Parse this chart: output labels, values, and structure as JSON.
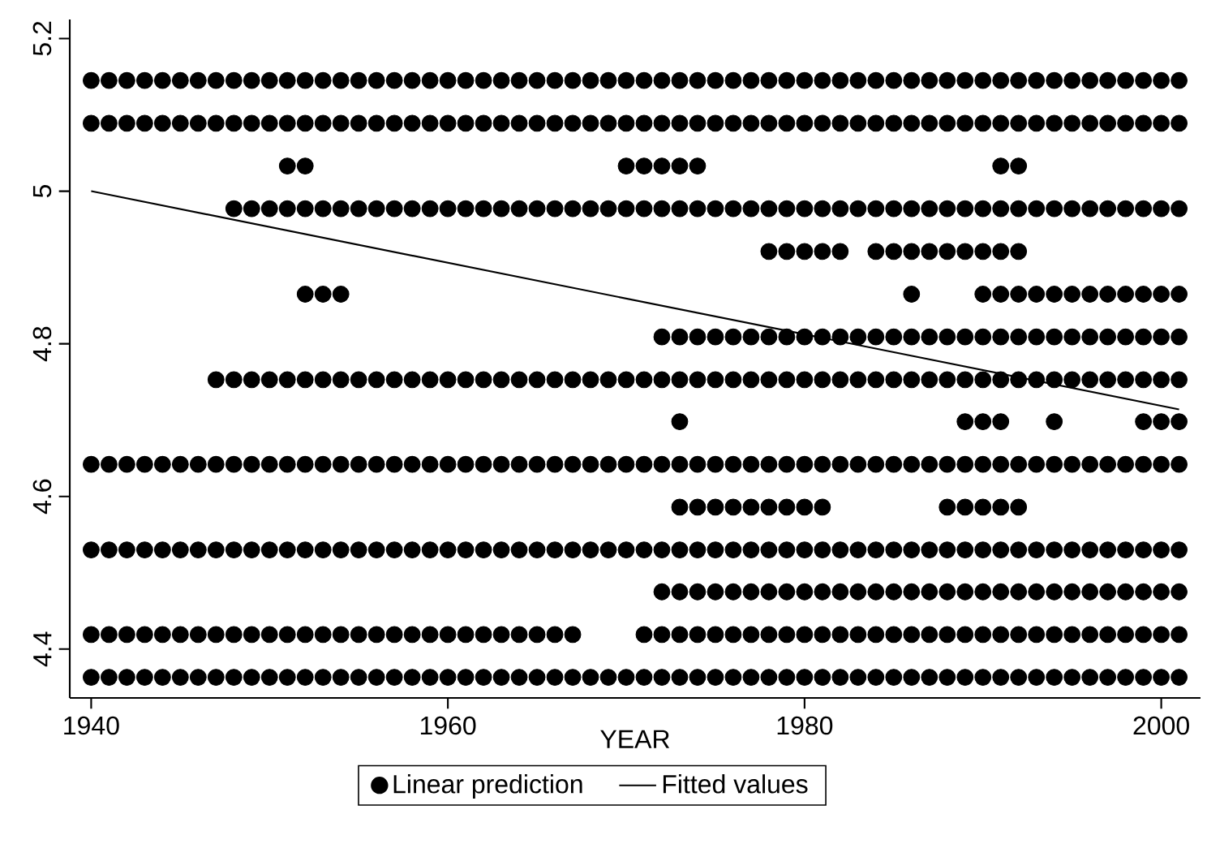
{
  "chart_data": {
    "type": "scatter",
    "xlabel": "YEAR",
    "xlim": [
      1938.8,
      2002.2
    ],
    "ylim": [
      4.336,
      5.225
    ],
    "xticks": [
      1940,
      1960,
      1980,
      2000
    ],
    "yticks": [
      4.4,
      4.6,
      4.8,
      5,
      5.2
    ],
    "legend": "bottom",
    "series": [
      {
        "name": "Linear prediction",
        "marker": "circle",
        "color": "#000000",
        "x": [
          1940,
          1941,
          1942,
          1943,
          1944,
          1945,
          1946,
          1947,
          1948,
          1949,
          1950,
          1951,
          1952,
          1953,
          1954,
          1955,
          1956,
          1957,
          1958,
          1959,
          1960,
          1961,
          1962,
          1963,
          1964,
          1965,
          1966,
          1967,
          1968,
          1969,
          1970,
          1971,
          1972,
          1973,
          1974,
          1975,
          1976,
          1977,
          1978,
          1979,
          1980,
          1981,
          1982,
          1983,
          1984,
          1985,
          1986,
          1987,
          1988,
          1989,
          1990,
          1991,
          1992,
          1993,
          1994,
          1995,
          1996,
          1997,
          1998,
          1999,
          2000,
          2001,
          1940,
          1941,
          1942,
          1943,
          1944,
          1945,
          1946,
          1947,
          1948,
          1949,
          1950,
          1951,
          1952,
          1953,
          1954,
          1955,
          1956,
          1957,
          1958,
          1959,
          1960,
          1961,
          1962,
          1963,
          1964,
          1965,
          1966,
          1967,
          1968,
          1969,
          1970,
          1971,
          1972,
          1973,
          1974,
          1975,
          1976,
          1977,
          1978,
          1979,
          1980,
          1981,
          1982,
          1983,
          1984,
          1985,
          1986,
          1987,
          1988,
          1989,
          1990,
          1991,
          1992,
          1993,
          1994,
          1995,
          1996,
          1997,
          1998,
          1999,
          2000,
          2001,
          1951,
          1952,
          1970,
          1971,
          1972,
          1973,
          1974,
          1991,
          1992,
          1948,
          1949,
          1950,
          1951,
          1952,
          1953,
          1954,
          1955,
          1956,
          1957,
          1958,
          1959,
          1960,
          1961,
          1962,
          1963,
          1964,
          1965,
          1966,
          1967,
          1968,
          1969,
          1970,
          1971,
          1972,
          1973,
          1974,
          1975,
          1976,
          1977,
          1978,
          1979,
          1980,
          1981,
          1982,
          1983,
          1984,
          1985,
          1986,
          1987,
          1988,
          1989,
          1990,
          1991,
          1992,
          1993,
          1994,
          1995,
          1996,
          1997,
          1998,
          1999,
          2000,
          2001,
          1978,
          1979,
          1980,
          1981,
          1982,
          1984,
          1985,
          1986,
          1987,
          1988,
          1989,
          1990,
          1991,
          1992,
          1952,
          1953,
          1954,
          1986,
          1990,
          1991,
          1992,
          1993,
          1994,
          1995,
          1996,
          1997,
          1998,
          1999,
          2000,
          2001,
          1972,
          1973,
          1974,
          1975,
          1976,
          1977,
          1978,
          1979,
          1980,
          1981,
          1982,
          1983,
          1984,
          1985,
          1986,
          1987,
          1988,
          1989,
          1990,
          1991,
          1992,
          1993,
          1994,
          1995,
          1996,
          1997,
          1998,
          1999,
          2000,
          2001,
          1947,
          1948,
          1949,
          1950,
          1951,
          1952,
          1953,
          1954,
          1955,
          1956,
          1957,
          1958,
          1959,
          1960,
          1961,
          1962,
          1963,
          1964,
          1965,
          1966,
          1967,
          1968,
          1969,
          1970,
          1971,
          1972,
          1973,
          1974,
          1975,
          1976,
          1977,
          1978,
          1979,
          1980,
          1981,
          1982,
          1983,
          1984,
          1985,
          1986,
          1987,
          1988,
          1989,
          1990,
          1991,
          1992,
          1993,
          1994,
          1995,
          1996,
          1997,
          1998,
          1999,
          2000,
          2001,
          1973,
          1989,
          1990,
          1991,
          1994,
          1999,
          2000,
          2001,
          1940,
          1941,
          1942,
          1943,
          1944,
          1945,
          1946,
          1947,
          1948,
          1949,
          1950,
          1951,
          1952,
          1953,
          1954,
          1955,
          1956,
          1957,
          1958,
          1959,
          1960,
          1961,
          1962,
          1963,
          1964,
          1965,
          1966,
          1967,
          1968,
          1969,
          1970,
          1971,
          1972,
          1973,
          1974,
          1975,
          1976,
          1977,
          1978,
          1979,
          1980,
          1981,
          1982,
          1983,
          1984,
          1985,
          1986,
          1987,
          1988,
          1989,
          1990,
          1991,
          1992,
          1993,
          1994,
          1995,
          1996,
          1997,
          1998,
          1999,
          2000,
          2001,
          1973,
          1974,
          1975,
          1976,
          1977,
          1978,
          1979,
          1980,
          1981,
          1988,
          1989,
          1990,
          1991,
          1992,
          1940,
          1941,
          1942,
          1943,
          1944,
          1945,
          1946,
          1947,
          1948,
          1949,
          1950,
          1951,
          1952,
          1953,
          1954,
          1955,
          1956,
          1957,
          1958,
          1959,
          1960,
          1961,
          1962,
          1963,
          1964,
          1965,
          1966,
          1967,
          1968,
          1969,
          1970,
          1971,
          1972,
          1973,
          1974,
          1975,
          1976,
          1977,
          1978,
          1979,
          1980,
          1981,
          1982,
          1983,
          1984,
          1985,
          1986,
          1987,
          1988,
          1989,
          1990,
          1991,
          1992,
          1993,
          1994,
          1995,
          1996,
          1997,
          1998,
          1999,
          2000,
          2001,
          1972,
          1973,
          1974,
          1975,
          1976,
          1977,
          1978,
          1979,
          1980,
          1981,
          1982,
          1983,
          1984,
          1985,
          1986,
          1987,
          1988,
          1989,
          1990,
          1991,
          1992,
          1993,
          1994,
          1995,
          1996,
          1997,
          1998,
          1999,
          2000,
          2001,
          1940,
          1941,
          1942,
          1943,
          1944,
          1945,
          1946,
          1947,
          1948,
          1949,
          1950,
          1951,
          1952,
          1953,
          1954,
          1955,
          1956,
          1957,
          1958,
          1959,
          1960,
          1961,
          1962,
          1963,
          1964,
          1965,
          1966,
          1967,
          1971,
          1972,
          1973,
          1974,
          1975,
          1976,
          1977,
          1978,
          1979,
          1980,
          1981,
          1982,
          1983,
          1984,
          1985,
          1986,
          1987,
          1988,
          1989,
          1990,
          1991,
          1992,
          1993,
          1994,
          1995,
          1996,
          1997,
          1998,
          1999,
          2000,
          2001,
          1940,
          1941,
          1942,
          1943,
          1944,
          1945,
          1946,
          1947,
          1948,
          1949,
          1950,
          1951,
          1952,
          1953,
          1954,
          1955,
          1956,
          1957,
          1958,
          1959,
          1960,
          1961,
          1962,
          1963,
          1964,
          1965,
          1966,
          1967,
          1968,
          1969,
          1970,
          1971,
          1972,
          1973,
          1974,
          1975,
          1976,
          1977,
          1978,
          1979,
          1980,
          1981,
          1982,
          1983,
          1984,
          1985,
          1986,
          1987,
          1988,
          1989,
          1990,
          1991,
          1992,
          1993,
          1994,
          1995,
          1996,
          1997,
          1998,
          1999,
          2000,
          2001
        ],
        "values": [
          5.145,
          5.145,
          5.145,
          5.145,
          5.145,
          5.145,
          5.145,
          5.145,
          5.145,
          5.145,
          5.145,
          5.145,
          5.145,
          5.145,
          5.145,
          5.145,
          5.145,
          5.145,
          5.145,
          5.145,
          5.145,
          5.145,
          5.145,
          5.145,
          5.145,
          5.145,
          5.145,
          5.145,
          5.145,
          5.145,
          5.145,
          5.145,
          5.145,
          5.145,
          5.145,
          5.145,
          5.145,
          5.145,
          5.145,
          5.145,
          5.145,
          5.145,
          5.145,
          5.145,
          5.145,
          5.145,
          5.145,
          5.145,
          5.145,
          5.145,
          5.145,
          5.145,
          5.145,
          5.145,
          5.145,
          5.145,
          5.145,
          5.145,
          5.145,
          5.145,
          5.145,
          5.145,
          5.089,
          5.089,
          5.089,
          5.089,
          5.089,
          5.089,
          5.089,
          5.089,
          5.089,
          5.089,
          5.089,
          5.089,
          5.089,
          5.089,
          5.089,
          5.089,
          5.089,
          5.089,
          5.089,
          5.089,
          5.089,
          5.089,
          5.089,
          5.089,
          5.089,
          5.089,
          5.089,
          5.089,
          5.089,
          5.089,
          5.089,
          5.089,
          5.089,
          5.089,
          5.089,
          5.089,
          5.089,
          5.089,
          5.089,
          5.089,
          5.089,
          5.089,
          5.089,
          5.089,
          5.089,
          5.089,
          5.089,
          5.089,
          5.089,
          5.089,
          5.089,
          5.089,
          5.089,
          5.089,
          5.089,
          5.089,
          5.089,
          5.089,
          5.089,
          5.089,
          5.089,
          5.089,
          5.033,
          5.033,
          5.033,
          5.033,
          5.033,
          5.033,
          5.033,
          5.033,
          5.033,
          4.977,
          4.977,
          4.977,
          4.977,
          4.977,
          4.977,
          4.977,
          4.977,
          4.977,
          4.977,
          4.977,
          4.977,
          4.977,
          4.977,
          4.977,
          4.977,
          4.977,
          4.977,
          4.977,
          4.977,
          4.977,
          4.977,
          4.977,
          4.977,
          4.977,
          4.977,
          4.977,
          4.977,
          4.977,
          4.977,
          4.977,
          4.977,
          4.977,
          4.977,
          4.977,
          4.977,
          4.977,
          4.977,
          4.977,
          4.977,
          4.977,
          4.977,
          4.977,
          4.977,
          4.977,
          4.977,
          4.977,
          4.977,
          4.977,
          4.977,
          4.977,
          4.977,
          4.977,
          4.977,
          4.921,
          4.921,
          4.921,
          4.921,
          4.921,
          4.921,
          4.921,
          4.921,
          4.921,
          4.921,
          4.921,
          4.921,
          4.921,
          4.921,
          4.865,
          4.865,
          4.865,
          4.865,
          4.865,
          4.865,
          4.865,
          4.865,
          4.865,
          4.865,
          4.865,
          4.865,
          4.865,
          4.865,
          4.865,
          4.865,
          4.809,
          4.809,
          4.809,
          4.809,
          4.809,
          4.809,
          4.809,
          4.809,
          4.809,
          4.809,
          4.809,
          4.809,
          4.809,
          4.809,
          4.809,
          4.809,
          4.809,
          4.809,
          4.809,
          4.809,
          4.809,
          4.809,
          4.809,
          4.809,
          4.809,
          4.809,
          4.809,
          4.809,
          4.809,
          4.809,
          4.753,
          4.753,
          4.753,
          4.753,
          4.753,
          4.753,
          4.753,
          4.753,
          4.753,
          4.753,
          4.753,
          4.753,
          4.753,
          4.753,
          4.753,
          4.753,
          4.753,
          4.753,
          4.753,
          4.753,
          4.753,
          4.753,
          4.753,
          4.753,
          4.753,
          4.753,
          4.753,
          4.753,
          4.753,
          4.753,
          4.753,
          4.753,
          4.753,
          4.753,
          4.753,
          4.753,
          4.753,
          4.753,
          4.753,
          4.753,
          4.753,
          4.753,
          4.753,
          4.753,
          4.753,
          4.753,
          4.753,
          4.753,
          4.753,
          4.753,
          4.753,
          4.753,
          4.753,
          4.753,
          4.753,
          4.698,
          4.698,
          4.698,
          4.698,
          4.698,
          4.698,
          4.698,
          4.698,
          4.642,
          4.642,
          4.642,
          4.642,
          4.642,
          4.642,
          4.642,
          4.642,
          4.642,
          4.642,
          4.642,
          4.642,
          4.642,
          4.642,
          4.642,
          4.642,
          4.642,
          4.642,
          4.642,
          4.642,
          4.642,
          4.642,
          4.642,
          4.642,
          4.642,
          4.642,
          4.642,
          4.642,
          4.642,
          4.642,
          4.642,
          4.642,
          4.642,
          4.642,
          4.642,
          4.642,
          4.642,
          4.642,
          4.642,
          4.642,
          4.642,
          4.642,
          4.642,
          4.642,
          4.642,
          4.642,
          4.642,
          4.642,
          4.642,
          4.642,
          4.642,
          4.642,
          4.642,
          4.642,
          4.642,
          4.642,
          4.642,
          4.642,
          4.642,
          4.642,
          4.642,
          4.642,
          4.586,
          4.586,
          4.586,
          4.586,
          4.586,
          4.586,
          4.586,
          4.586,
          4.586,
          4.586,
          4.586,
          4.586,
          4.586,
          4.586,
          4.53,
          4.53,
          4.53,
          4.53,
          4.53,
          4.53,
          4.53,
          4.53,
          4.53,
          4.53,
          4.53,
          4.53,
          4.53,
          4.53,
          4.53,
          4.53,
          4.53,
          4.53,
          4.53,
          4.53,
          4.53,
          4.53,
          4.53,
          4.53,
          4.53,
          4.53,
          4.53,
          4.53,
          4.53,
          4.53,
          4.53,
          4.53,
          4.53,
          4.53,
          4.53,
          4.53,
          4.53,
          4.53,
          4.53,
          4.53,
          4.53,
          4.53,
          4.53,
          4.53,
          4.53,
          4.53,
          4.53,
          4.53,
          4.53,
          4.53,
          4.53,
          4.53,
          4.53,
          4.53,
          4.53,
          4.53,
          4.53,
          4.53,
          4.53,
          4.53,
          4.53,
          4.53,
          4.475,
          4.475,
          4.475,
          4.475,
          4.475,
          4.475,
          4.475,
          4.475,
          4.475,
          4.475,
          4.475,
          4.475,
          4.475,
          4.475,
          4.475,
          4.475,
          4.475,
          4.475,
          4.475,
          4.475,
          4.475,
          4.475,
          4.475,
          4.475,
          4.475,
          4.475,
          4.475,
          4.475,
          4.475,
          4.475,
          4.419,
          4.419,
          4.419,
          4.419,
          4.419,
          4.419,
          4.419,
          4.419,
          4.419,
          4.419,
          4.419,
          4.419,
          4.419,
          4.419,
          4.419,
          4.419,
          4.419,
          4.419,
          4.419,
          4.419,
          4.419,
          4.419,
          4.419,
          4.419,
          4.419,
          4.419,
          4.419,
          4.419,
          4.419,
          4.419,
          4.419,
          4.419,
          4.419,
          4.419,
          4.419,
          4.419,
          4.419,
          4.419,
          4.419,
          4.419,
          4.419,
          4.419,
          4.419,
          4.419,
          4.419,
          4.419,
          4.419,
          4.419,
          4.419,
          4.419,
          4.419,
          4.419,
          4.419,
          4.419,
          4.419,
          4.419,
          4.419,
          4.419,
          4.419,
          4.363,
          4.363,
          4.363,
          4.363,
          4.363,
          4.363,
          4.363,
          4.363,
          4.363,
          4.363,
          4.363,
          4.363,
          4.363,
          4.363,
          4.363,
          4.363,
          4.363,
          4.363,
          4.363,
          4.363,
          4.363,
          4.363,
          4.363,
          4.363,
          4.363,
          4.363,
          4.363,
          4.363,
          4.363,
          4.363,
          4.363,
          4.363,
          4.363,
          4.363,
          4.363,
          4.363,
          4.363,
          4.363,
          4.363,
          4.363,
          4.363,
          4.363,
          4.363,
          4.363,
          4.363,
          4.363,
          4.363,
          4.363,
          4.363,
          4.363,
          4.363,
          4.363,
          4.363,
          4.363,
          4.363,
          4.363,
          4.363,
          4.363,
          4.363,
          4.363,
          4.363,
          4.363
        ]
      },
      {
        "name": "Fitted values",
        "type": "line",
        "marker": "none",
        "line_style": "solid",
        "color": "#000000",
        "x": [
          1940,
          2001
        ],
        "values": [
          5.0,
          4.714
        ]
      }
    ]
  }
}
